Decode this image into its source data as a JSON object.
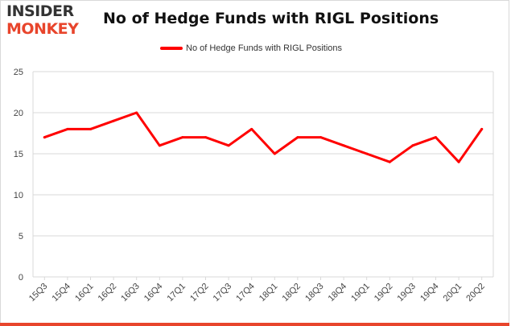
{
  "header": {
    "logo_line1": "INSIDER",
    "logo_line2": "MONKEY",
    "title": "No of Hedge Funds with RIGL Positions"
  },
  "colors": {
    "series": "#ff0000",
    "brand": "#e8452c",
    "grid": "#d9d9d9",
    "axis_text": "#444444"
  },
  "chart_data": {
    "type": "line",
    "title": "No of Hedge Funds with RIGL Positions",
    "xlabel": "",
    "ylabel": "",
    "ylim": [
      0,
      25
    ],
    "yticks": [
      0,
      5,
      10,
      15,
      20,
      25
    ],
    "grid": true,
    "legend_position": "top-center",
    "categories": [
      "15Q3",
      "15Q4",
      "16Q1",
      "16Q2",
      "16Q3",
      "16Q4",
      "17Q1",
      "17Q2",
      "17Q3",
      "17Q4",
      "18Q1",
      "18Q2",
      "18Q3",
      "18Q4",
      "19Q1",
      "19Q2",
      "19Q3",
      "19Q4",
      "20Q1",
      "20Q2"
    ],
    "series": [
      {
        "name": "No of Hedge Funds with RIGL Positions",
        "values": [
          17,
          18,
          18,
          19,
          20,
          16,
          17,
          17,
          16,
          18,
          15,
          17,
          17,
          16,
          15,
          14,
          16,
          17,
          14,
          18
        ]
      }
    ]
  }
}
